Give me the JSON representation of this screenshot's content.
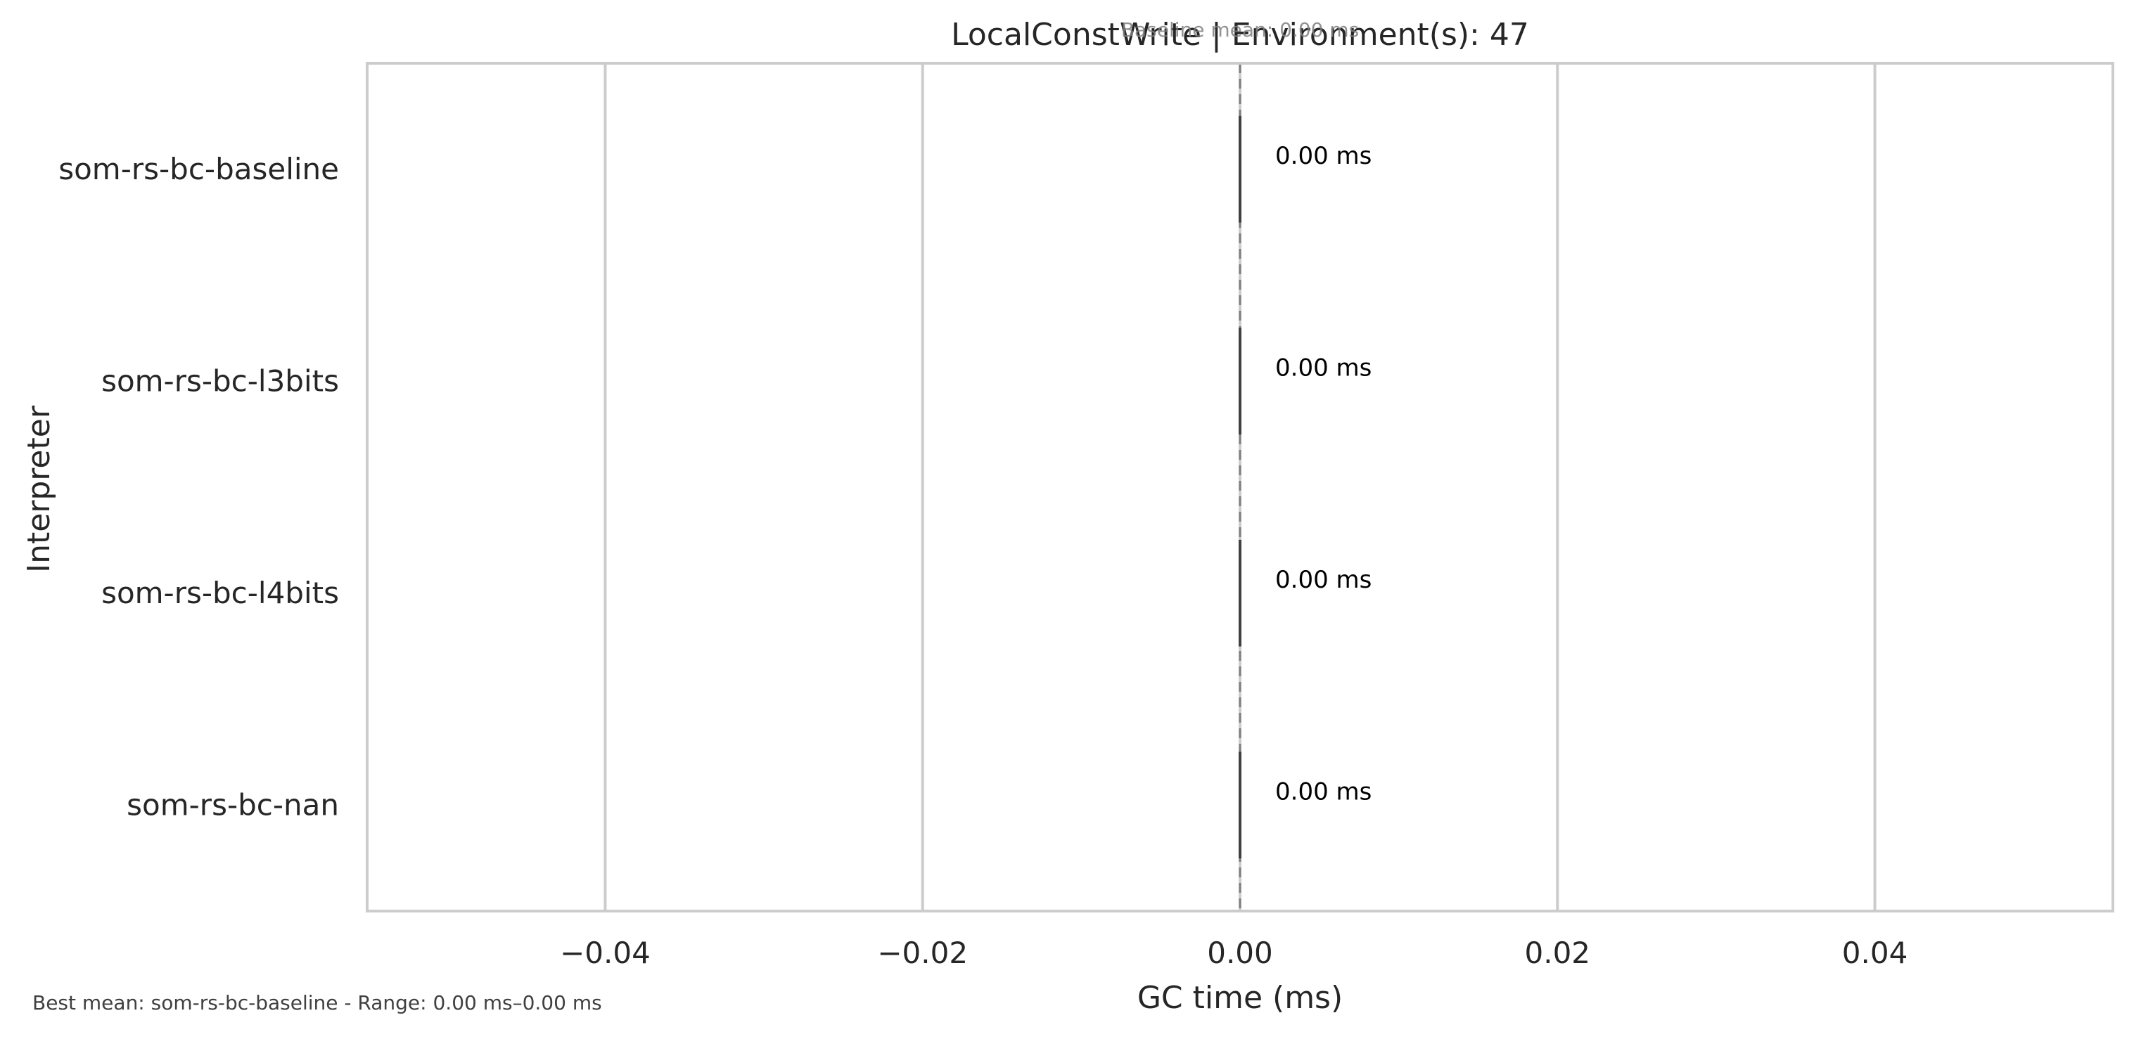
{
  "chart_data": {
    "type": "bar",
    "orientation": "horizontal",
    "title": "LocalConstWrite | Environment(s): 47",
    "baseline_annotation": "Baseline mean: 0.00 ms",
    "xlabel": "GC time (ms)",
    "ylabel": "Interpreter",
    "categories": [
      "som-rs-bc-baseline",
      "som-rs-bc-l3bits",
      "som-rs-bc-l4bits",
      "som-rs-bc-nan"
    ],
    "values": [
      0.0,
      0.0,
      0.0,
      0.0
    ],
    "value_labels": [
      "0.00 ms",
      "0.00 ms",
      "0.00 ms",
      "0.00 ms"
    ],
    "baseline_value": 0.0,
    "xlim": [
      -0.055,
      0.055
    ],
    "xticks": [
      -0.04,
      -0.02,
      0.0,
      0.02,
      0.04
    ],
    "xtick_labels": [
      "−0.04",
      "−0.02",
      "0.00",
      "0.02",
      "0.04"
    ],
    "grid": true,
    "legend": "none",
    "footer": "Best mean: som-rs-bc-baseline - Range: 0.00 ms–0.00 ms",
    "colors": {
      "grid": "#cccccc",
      "frame": "#cccccc",
      "bar_edge": "#404040",
      "baseline_line": "#7f7f7f",
      "text": "#262626",
      "muted_text": "#595959"
    }
  }
}
